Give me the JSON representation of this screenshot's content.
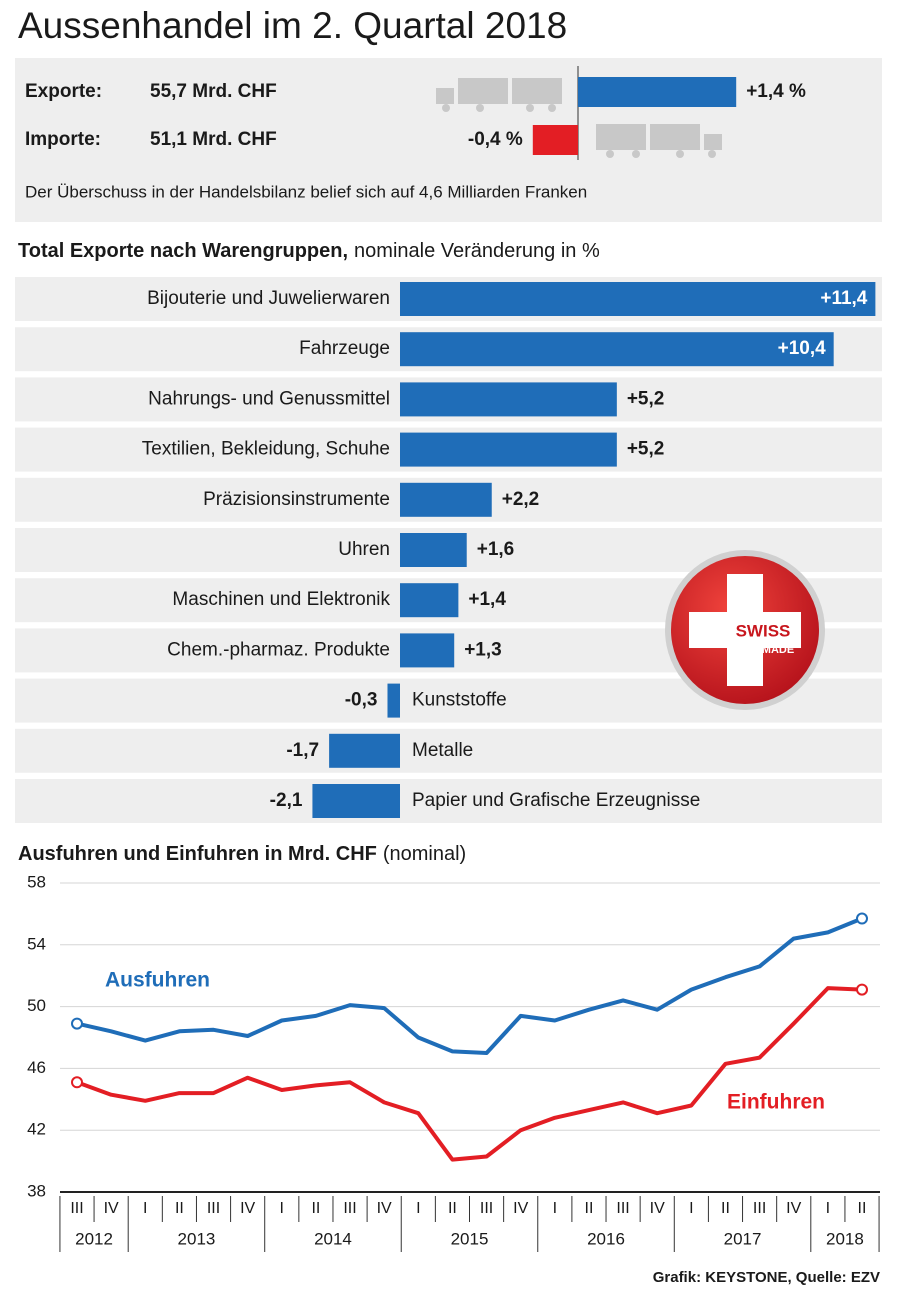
{
  "title": "Aussenhandel im 2. Quartal 2018",
  "chart_data": [
    {
      "type": "bar",
      "orientation": "horizontal",
      "categories": [
        "Exporte:",
        "Importe:"
      ],
      "amounts": [
        "55,7 Mrd. CHF",
        "51,1 Mrd. CHF"
      ],
      "values": [
        1.4,
        -0.4
      ],
      "value_labels": [
        "+1,4 %",
        "-0,4 %"
      ],
      "colors": [
        "#1f6db8",
        "#e31e24"
      ],
      "annotation": "Der Überschuss in der Handelsbilanz belief sich auf 4,6 Milliarden Franken"
    },
    {
      "type": "bar",
      "orientation": "horizontal",
      "title": "Total Exporte nach Warengruppen,",
      "subtitle": "nominale Veränderung in %",
      "categories": [
        "Bijouterie und Juwelierwaren",
        "Fahrzeuge",
        "Nahrungs- und Genussmittel",
        "Textilien, Bekleidung, Schuhe",
        "Präzisionsinstrumente",
        "Uhren",
        "Maschinen und Elektronik",
        "Chem.-pharmaz. Produkte",
        "Kunststoffe",
        "Metalle",
        "Papier und Grafische Erzeugnisse"
      ],
      "values": [
        11.4,
        10.4,
        5.2,
        5.2,
        2.2,
        1.6,
        1.4,
        1.3,
        -0.3,
        -1.7,
        -2.1
      ],
      "value_labels": [
        "+11,4",
        "+10,4",
        "+5,2",
        "+5,2",
        "+2,2",
        "+1,6",
        "+1,4",
        "+1,3",
        "-0,3",
        "-1,7",
        "-2,1"
      ],
      "color": "#1f6db8"
    },
    {
      "type": "line",
      "title": "Ausfuhren und Einfuhren in Mrd. CHF",
      "subtitle": "(nominal)",
      "groups": [
        {
          "label": "2012",
          "categories": [
            "III",
            "IV"
          ]
        },
        {
          "label": "2013",
          "categories": [
            "I",
            "II",
            "III",
            "IV"
          ]
        },
        {
          "label": "2014",
          "categories": [
            "I",
            "II",
            "III",
            "IV"
          ]
        },
        {
          "label": "2015",
          "categories": [
            "I",
            "II",
            "III",
            "IV"
          ]
        },
        {
          "label": "2016",
          "categories": [
            "I",
            "II",
            "III",
            "IV"
          ]
        },
        {
          "label": "2017",
          "categories": [
            "I",
            "II",
            "III",
            "IV"
          ]
        },
        {
          "label": "2018",
          "categories": [
            "I",
            "II"
          ]
        }
      ],
      "series": [
        {
          "name": "Ausfuhren",
          "color": "#1f6db8",
          "values": [
            48.9,
            48.4,
            47.8,
            48.4,
            48.5,
            48.1,
            49.1,
            49.4,
            50.1,
            49.9,
            48.0,
            47.1,
            47.0,
            49.4,
            49.1,
            49.8,
            50.4,
            49.8,
            51.1,
            51.9,
            52.6,
            54.4,
            54.8,
            55.7
          ]
        },
        {
          "name": "Einfuhren",
          "color": "#e31e24",
          "values": [
            45.1,
            44.3,
            43.9,
            44.4,
            44.4,
            45.4,
            44.6,
            44.9,
            45.1,
            43.8,
            43.1,
            40.1,
            40.3,
            42.0,
            42.8,
            43.3,
            43.8,
            43.1,
            43.6,
            46.3,
            46.7,
            48.9,
            51.2,
            51.1
          ]
        }
      ],
      "ylim": [
        38,
        58
      ],
      "yticks": [
        38,
        42,
        46,
        50,
        54,
        58
      ],
      "grid": true
    }
  ],
  "badge": [
    "SWISS",
    "MADE"
  ],
  "source": "Grafik: KEYSTONE, Quelle: EZV"
}
